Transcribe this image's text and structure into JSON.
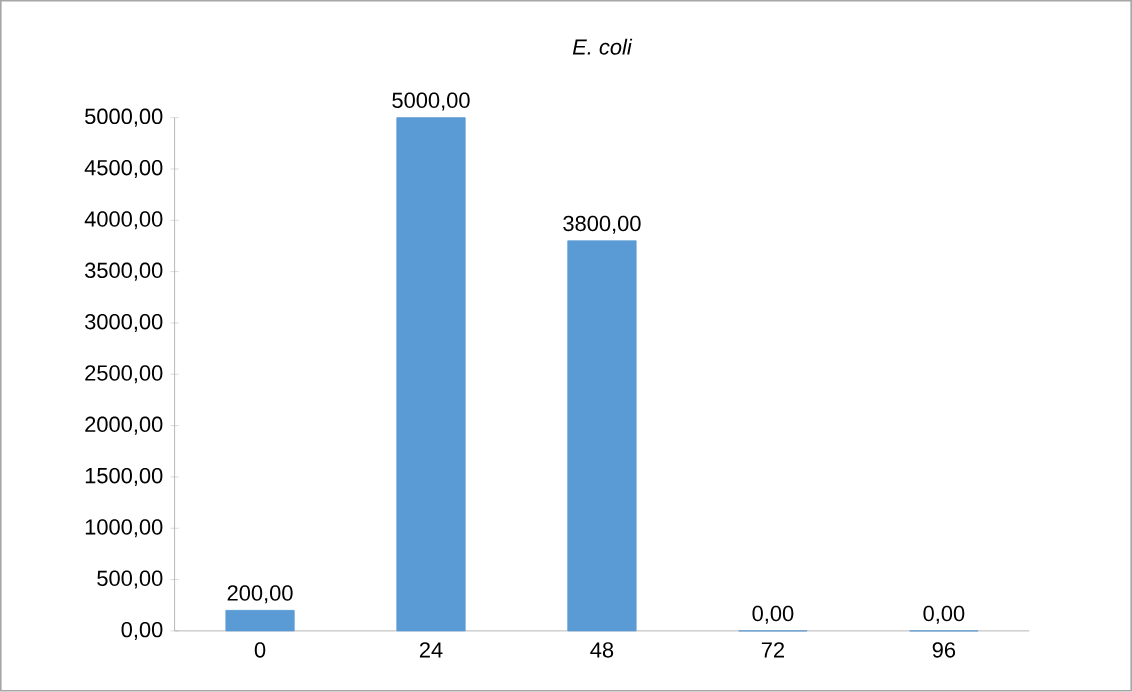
{
  "chart_data": {
    "type": "bar",
    "title": "E. coli",
    "categories": [
      "0",
      "24",
      "48",
      "72",
      "96"
    ],
    "values": [
      200,
      5000,
      3800,
      0,
      0
    ],
    "value_labels": [
      "200,00",
      "5000,00",
      "3800,00",
      "0,00",
      "0,00"
    ],
    "color": "#5b9bd5",
    "ylim": [
      0,
      5000
    ],
    "yticks": [
      {
        "value": 0,
        "label": "0,00"
      },
      {
        "value": 500,
        "label": "500,00"
      },
      {
        "value": 1000,
        "label": "1000,00"
      },
      {
        "value": 1500,
        "label": "1500,00"
      },
      {
        "value": 2000,
        "label": "2000,00"
      },
      {
        "value": 2500,
        "label": "2500,00"
      },
      {
        "value": 3000,
        "label": "3000,00"
      },
      {
        "value": 3500,
        "label": "3500,00"
      },
      {
        "value": 4000,
        "label": "4000,00"
      },
      {
        "value": 4500,
        "label": "4500,00"
      },
      {
        "value": 5000,
        "label": "5000,00"
      }
    ]
  }
}
